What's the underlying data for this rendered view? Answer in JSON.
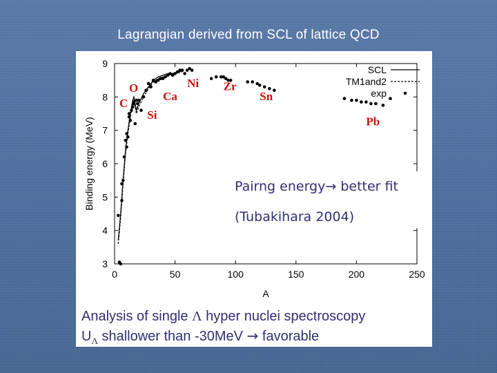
{
  "slide": {
    "title": "Lagrangian derived from SCL of lattice QCD",
    "pairing": {
      "text": "Pairng energy",
      "arrow": "→",
      "suffix": " better fit",
      "ref": "(Tubakihara 2004)"
    },
    "analysis": {
      "line1_a": "Analysis of single ",
      "line1_lambda": "Λ",
      "line1_b": " hyper nuclei spectroscopy",
      "line2_a": "U",
      "line2_sub": "Λ",
      "line2_b": " shallower than -30MeV ",
      "line2_arrow": "→",
      "line2_c": " favorable"
    }
  },
  "colors": {
    "text_blue": "#2f2f72",
    "nucleus_red": "#cc1111",
    "background": "#5a7aa8"
  },
  "chart_data": {
    "type": "line",
    "xlabel": "A",
    "ylabel": "Binding energy (MeV)",
    "xlim": [
      0,
      250
    ],
    "ylim": [
      3,
      9
    ],
    "xticks": [
      0,
      50,
      100,
      150,
      200,
      250
    ],
    "yticks": [
      3,
      4,
      5,
      6,
      7,
      8,
      9
    ],
    "legend": [
      {
        "label": "SCL",
        "style": "solid"
      },
      {
        "label": "TM1and2",
        "style": "dashed"
      },
      {
        "label": "exp",
        "style": "points"
      }
    ],
    "nucleus_labels": [
      {
        "text": "C",
        "x": 4,
        "y": 7.7
      },
      {
        "text": "O",
        "x": 12,
        "y": 8.15
      },
      {
        "text": "Si",
        "x": 27,
        "y": 7.35
      },
      {
        "text": "Ca",
        "x": 40,
        "y": 7.9
      },
      {
        "text": "Ni",
        "x": 60,
        "y": 8.3
      },
      {
        "text": "Zr",
        "x": 90,
        "y": 8.2
      },
      {
        "text": "Sn",
        "x": 120,
        "y": 7.9
      },
      {
        "text": "Pb",
        "x": 208,
        "y": 7.15
      }
    ],
    "series": [
      {
        "name": "exp",
        "x": [
          3,
          4,
          5,
          6,
          6,
          7,
          8,
          9,
          10,
          10,
          11,
          12,
          12,
          13,
          14,
          15,
          16,
          16,
          17,
          18,
          19,
          20,
          22,
          24,
          26,
          28,
          30,
          32,
          34,
          36,
          38,
          40,
          42,
          44,
          46,
          48,
          50,
          52,
          54,
          56,
          58,
          60,
          62,
          64,
          80,
          84,
          88,
          90,
          92,
          94,
          96,
          110,
          114,
          118,
          120,
          124,
          128,
          132,
          190,
          196,
          200,
          204,
          208,
          212,
          216,
          222,
          228
        ],
        "y": [
          4.45,
          3.05,
          3.0,
          5.4,
          4.9,
          5.5,
          6.2,
          6.7,
          6.5,
          6.9,
          6.8,
          7.5,
          7.4,
          7.3,
          7.6,
          7.7,
          7.85,
          7.8,
          7.2,
          7.9,
          7.8,
          7.9,
          7.6,
          8.0,
          8.2,
          8.4,
          8.3,
          8.5,
          8.45,
          8.5,
          8.55,
          8.55,
          8.6,
          8.65,
          8.7,
          8.65,
          8.7,
          8.75,
          8.8,
          8.8,
          8.7,
          8.8,
          8.85,
          8.8,
          8.55,
          8.6,
          8.6,
          8.6,
          8.55,
          8.5,
          8.5,
          8.45,
          8.45,
          8.4,
          8.35,
          8.3,
          8.25,
          8.2,
          7.95,
          7.9,
          7.9,
          7.85,
          7.85,
          7.8,
          7.8,
          7.75,
          7.95
        ]
      },
      {
        "name": "SCL",
        "x": [
          3,
          5,
          7,
          9,
          11,
          13,
          15,
          16,
          18,
          20,
          24,
          28,
          32,
          36,
          40,
          44,
          48,
          52,
          56
        ],
        "y": [
          3.7,
          4.5,
          5.5,
          6.4,
          7.0,
          7.5,
          7.9,
          8.0,
          7.6,
          7.8,
          8.1,
          8.3,
          8.5,
          8.6,
          8.65,
          8.7,
          8.7,
          8.75,
          8.78
        ]
      },
      {
        "name": "TM1and2",
        "x": [
          3,
          5,
          7,
          9,
          11,
          13,
          15,
          16,
          18,
          20,
          24,
          28,
          32,
          36,
          40,
          44,
          48,
          52,
          56
        ],
        "y": [
          3.6,
          4.4,
          5.4,
          6.3,
          6.9,
          7.4,
          7.8,
          7.9,
          7.5,
          7.7,
          8.0,
          8.25,
          8.45,
          8.55,
          8.6,
          8.65,
          8.68,
          8.72,
          8.75
        ]
      }
    ]
  }
}
